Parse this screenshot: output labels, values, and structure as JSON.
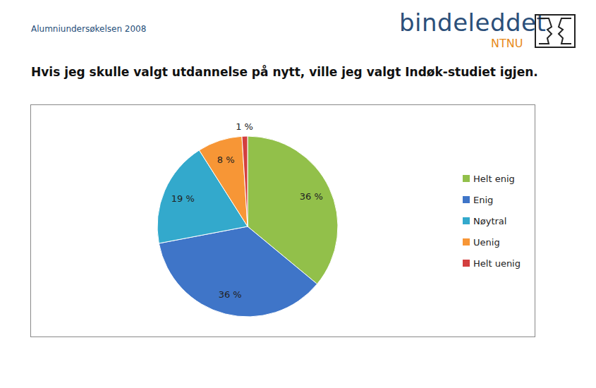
{
  "chart_data": {
    "type": "pie",
    "title": "Hvis jeg skulle valgt utdannelse på nytt, ville jeg valgt Indøk-studiet igjen.",
    "categories": [
      "Helt enig",
      "Enig",
      "Nøytral",
      "Uenig",
      "Helt uenig"
    ],
    "values": [
      36,
      36,
      19,
      8,
      1
    ],
    "value_labels": [
      "36 %",
      "36 %",
      "19 %",
      "8 %",
      "1 %"
    ],
    "colors": [
      "#92c04a",
      "#3f75c8",
      "#33a9cc",
      "#f79636",
      "#d33f3f"
    ],
    "data_labels": true,
    "legend": "right"
  },
  "page": {
    "survey": "Alumniundersøkelsen 2008",
    "logo": "bindeleddet",
    "logo_sub": "NTNU"
  }
}
